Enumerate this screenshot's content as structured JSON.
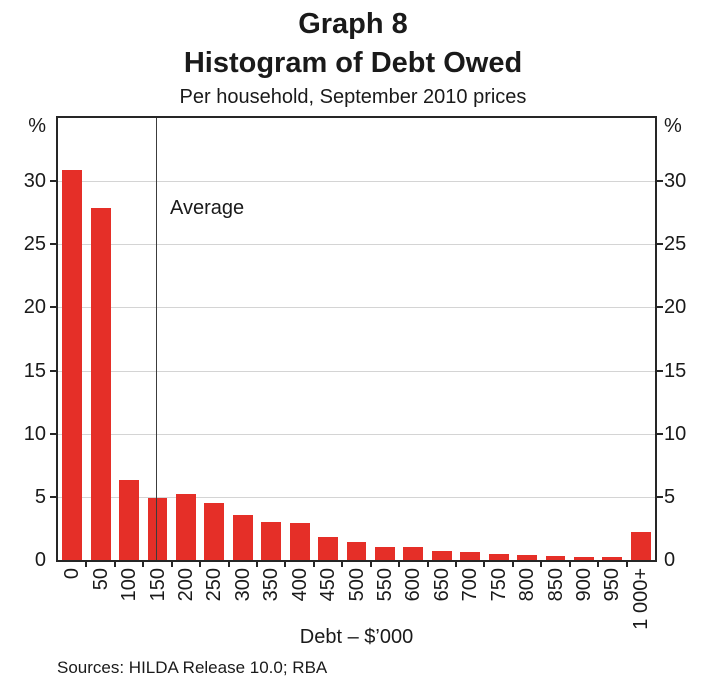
{
  "header": {
    "graph_label": "Graph 8",
    "title": "Histogram of Debt Owed",
    "subtitle": "Per household, September 2010 prices"
  },
  "chart_data": {
    "type": "bar",
    "title": "Histogram of Debt Owed",
    "subtitle": "Per household, September 2010 prices",
    "categories": [
      "0",
      "50",
      "100",
      "150",
      "200",
      "250",
      "300",
      "350",
      "400",
      "450",
      "500",
      "550",
      "600",
      "650",
      "700",
      "750",
      "800",
      "850",
      "900",
      "950",
      "1 000+"
    ],
    "values": [
      30.9,
      27.9,
      6.3,
      4.9,
      5.2,
      4.5,
      3.6,
      3.0,
      2.9,
      1.8,
      1.4,
      1.0,
      1.0,
      0.7,
      0.6,
      0.5,
      0.4,
      0.3,
      0.2,
      0.2,
      2.2
    ],
    "xlabel": "Debt – $’000",
    "ylabel_left": "%",
    "ylabel_right": "%",
    "ylim": [
      0,
      35
    ],
    "ytick_values": [
      0,
      5,
      10,
      15,
      20,
      25,
      30
    ],
    "grid": true,
    "legend": "none",
    "bar_color": "#e52f28",
    "grid_color": "#d4d4d4",
    "axis_color": "#262626",
    "annotation": {
      "label": "Average",
      "value_thousands": 147
    },
    "bin_width_thousands": 50
  },
  "footer": {
    "sources": "Sources: HILDA Release 10.0; RBA"
  }
}
